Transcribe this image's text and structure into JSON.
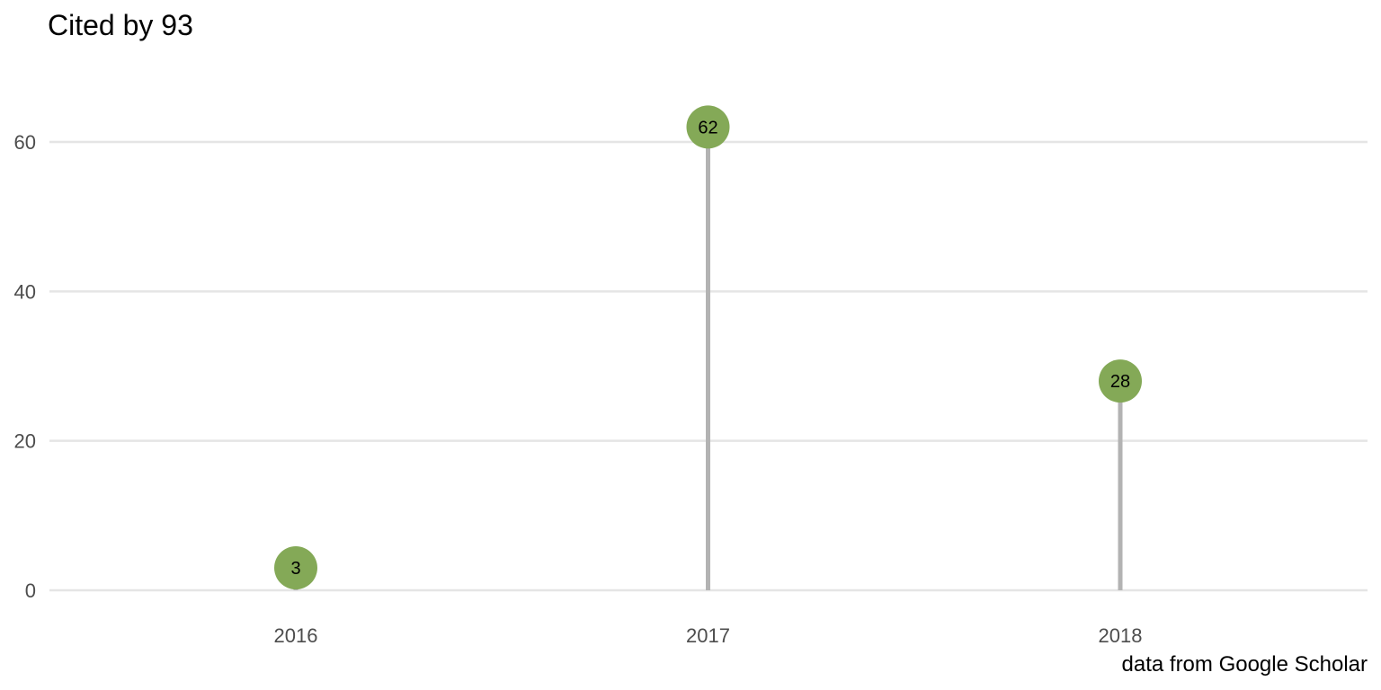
{
  "chart_data": {
    "type": "lollipop",
    "title": "Cited by 93",
    "caption": "data from Google Scholar",
    "categories": [
      "2016",
      "2017",
      "2018"
    ],
    "values": [
      3,
      62,
      28
    ],
    "data_labels": [
      "3",
      "62",
      "28"
    ],
    "xlabel": "",
    "ylabel": "",
    "ylim": [
      0,
      70
    ],
    "yticks": [
      0,
      20,
      40,
      60
    ],
    "ytick_labels": [
      "0",
      "20",
      "40",
      "60"
    ],
    "grid": "horizontal",
    "colors": {
      "point": "#84a957",
      "stem": "#b3b3b3",
      "grid": "#e5e5e5"
    }
  }
}
